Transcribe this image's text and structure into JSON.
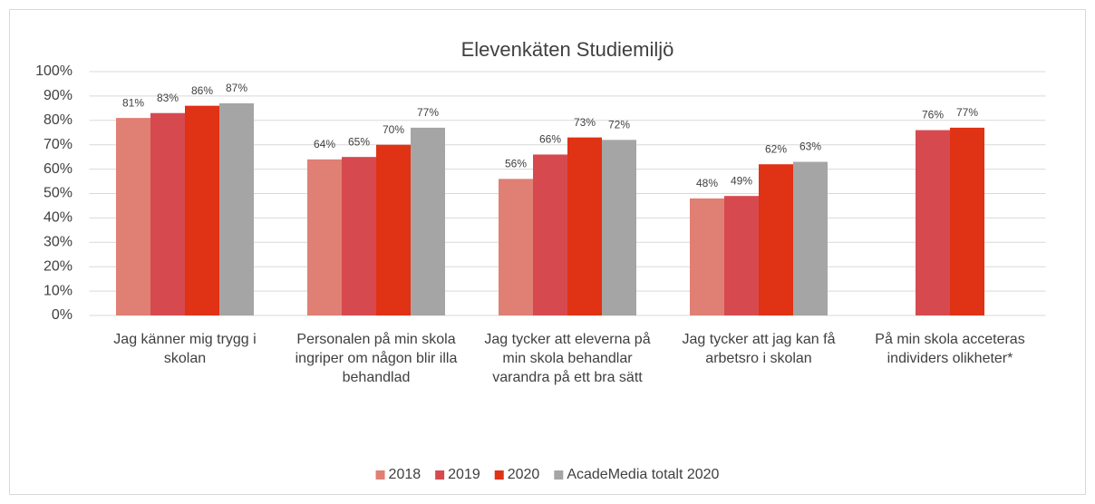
{
  "chart_data": {
    "type": "bar",
    "title": "Elevenkäten Studiemiljö",
    "categories": [
      "Jag känner mig trygg i skolan",
      "Personalen på min skola ingriper om någon blir illa behandlad",
      "Jag tycker att eleverna på min skola behandlar varandra på ett bra sätt",
      "Jag tycker att jag kan få arbetsro i skolan",
      "På min skola acceteras individers olikheter*"
    ],
    "series": [
      {
        "name": "2018",
        "color": "#e07f74",
        "values": [
          81,
          64,
          56,
          48,
          null
        ],
        "value_labels": [
          "81%",
          "64%",
          "56%",
          "48%",
          null
        ]
      },
      {
        "name": "2019",
        "color": "#d64a4f",
        "values": [
          83,
          65,
          66,
          49,
          76
        ],
        "value_labels": [
          "83%",
          "65%",
          "66%",
          "49%",
          "76%"
        ]
      },
      {
        "name": "2020",
        "color": "#e03214",
        "values": [
          86,
          70,
          73,
          62,
          77
        ],
        "value_labels": [
          "86%",
          "70%",
          "73%",
          "62%",
          "77%"
        ]
      },
      {
        "name": "AcadeMedia totalt 2020",
        "color": "#a5a5a5",
        "values": [
          87,
          77,
          72,
          63,
          null
        ],
        "value_labels": [
          "87%",
          "77%",
          "72%",
          "63%",
          null
        ]
      }
    ],
    "ylim": [
      0,
      100
    ],
    "yticks": [
      {
        "value": 0,
        "label": "0%"
      },
      {
        "value": 10,
        "label": "10%"
      },
      {
        "value": 20,
        "label": "20%"
      },
      {
        "value": 30,
        "label": "30%"
      },
      {
        "value": 40,
        "label": "40%"
      },
      {
        "value": 50,
        "label": "50%"
      },
      {
        "value": 60,
        "label": "60%"
      },
      {
        "value": 70,
        "label": "70%"
      },
      {
        "value": 80,
        "label": "80%"
      },
      {
        "value": 90,
        "label": "90%"
      },
      {
        "value": 100,
        "label": "100%"
      }
    ],
    "grid": true,
    "legend": "bottom"
  }
}
